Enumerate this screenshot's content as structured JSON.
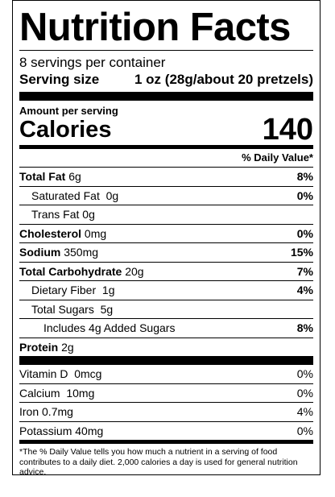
{
  "label": {
    "title": "Nutrition Facts",
    "servings_per_container": "8 servings per container",
    "serving_size_label": "Serving size",
    "serving_size_value": "1 oz (28g/about 20 pretzels)",
    "amount_per_serving": "Amount per serving",
    "calories_label": "Calories",
    "calories_value": "140",
    "daily_value_header": "% Daily Value*",
    "nutrients": [
      {
        "name": "Total Fat",
        "amount": "6g",
        "dv": "8%"
      },
      {
        "name": "Saturated Fat",
        "amount": "0g",
        "dv": "0%"
      },
      {
        "name": "Trans Fat",
        "amount": "0g",
        "dv": ""
      },
      {
        "name": "Cholesterol",
        "amount": "0mg",
        "dv": "0%"
      },
      {
        "name": "Sodium",
        "amount": "350mg",
        "dv": "15%"
      },
      {
        "name": "Total Carbohydrate",
        "amount": "20g",
        "dv": "7%"
      },
      {
        "name": "Dietary Fiber",
        "amount": "1g",
        "dv": "4%"
      },
      {
        "name": "Total Sugars",
        "amount": "5g",
        "dv": ""
      },
      {
        "name": "Includes 4g Added Sugars",
        "amount": "",
        "dv": "8%"
      },
      {
        "name": "Protein",
        "amount": "2g",
        "dv": ""
      }
    ],
    "vitamins": [
      {
        "name": "Vitamin D",
        "amount": "0mcg",
        "dv": "0%"
      },
      {
        "name": "Calcium",
        "amount": "10mg",
        "dv": "0%"
      },
      {
        "name": "Iron",
        "amount": "0.7mg",
        "dv": "4%"
      },
      {
        "name": "Potassium",
        "amount": "40mg",
        "dv": "0%"
      }
    ],
    "footnote": "*The % Daily Value tells you how much a nutrient in a serving of food contributes to a daily diet. 2,000 calories a day is used for general nutrition advice."
  }
}
